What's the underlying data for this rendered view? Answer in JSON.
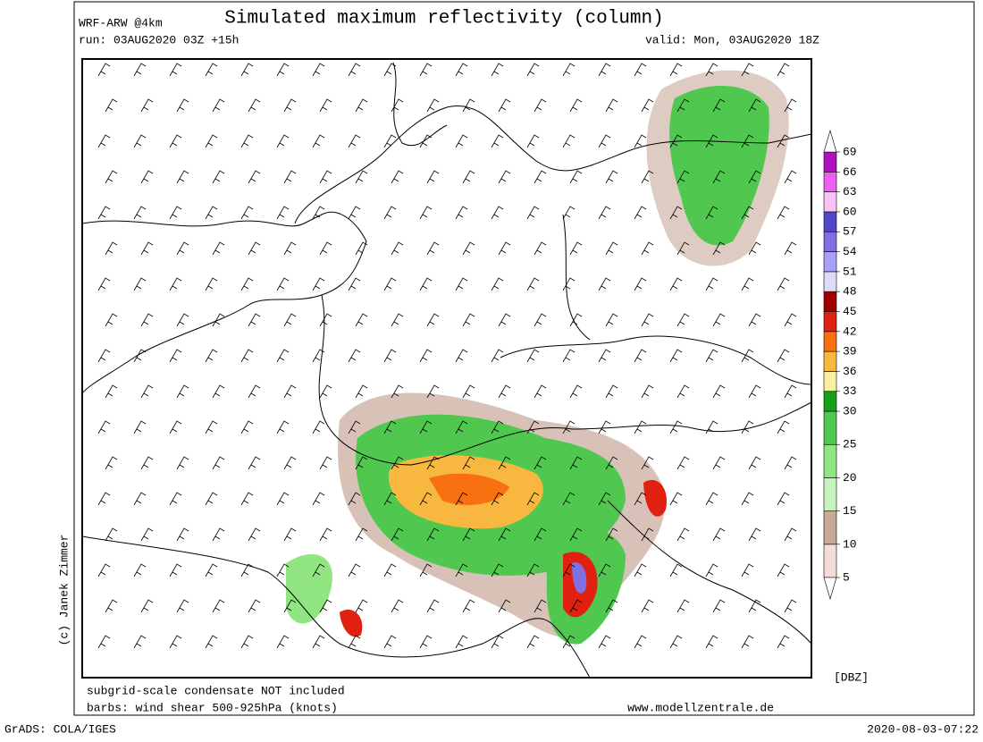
{
  "header": {
    "model": "WRF-ARW @4km",
    "title": "Simulated maximum reflectivity (column)",
    "run": "run: 03AUG2020 03Z +15h",
    "valid": "valid: Mon, 03AUG2020 18Z"
  },
  "colorbar": {
    "unit": "[DBZ]",
    "levels": [
      5,
      10,
      15,
      20,
      25,
      30,
      33,
      36,
      39,
      42,
      45,
      48,
      51,
      54,
      57,
      60,
      63,
      66,
      69
    ],
    "colors": [
      "#f2ddd6",
      "#c8a898",
      "#c8f4c0",
      "#90e482",
      "#50c850",
      "#18a018",
      "#f8f0a0",
      "#f8b840",
      "#f87010",
      "#e02010",
      "#a00000",
      "#dcdcf8",
      "#a8a0f8",
      "#8070e0",
      "#5048c8",
      "#f8c4f8",
      "#f060f0",
      "#b010c0"
    ]
  },
  "footer": {
    "note": "subgrid-scale condensate NOT included",
    "barbs": "barbs: wind shear 500-925hPa (knots)",
    "website": "www.modellzentrale.de",
    "copyright": "(c) Janek Zimmer",
    "software": "GrADS: COLA/IGES",
    "timestamp": "2020-08-03-07:22"
  }
}
